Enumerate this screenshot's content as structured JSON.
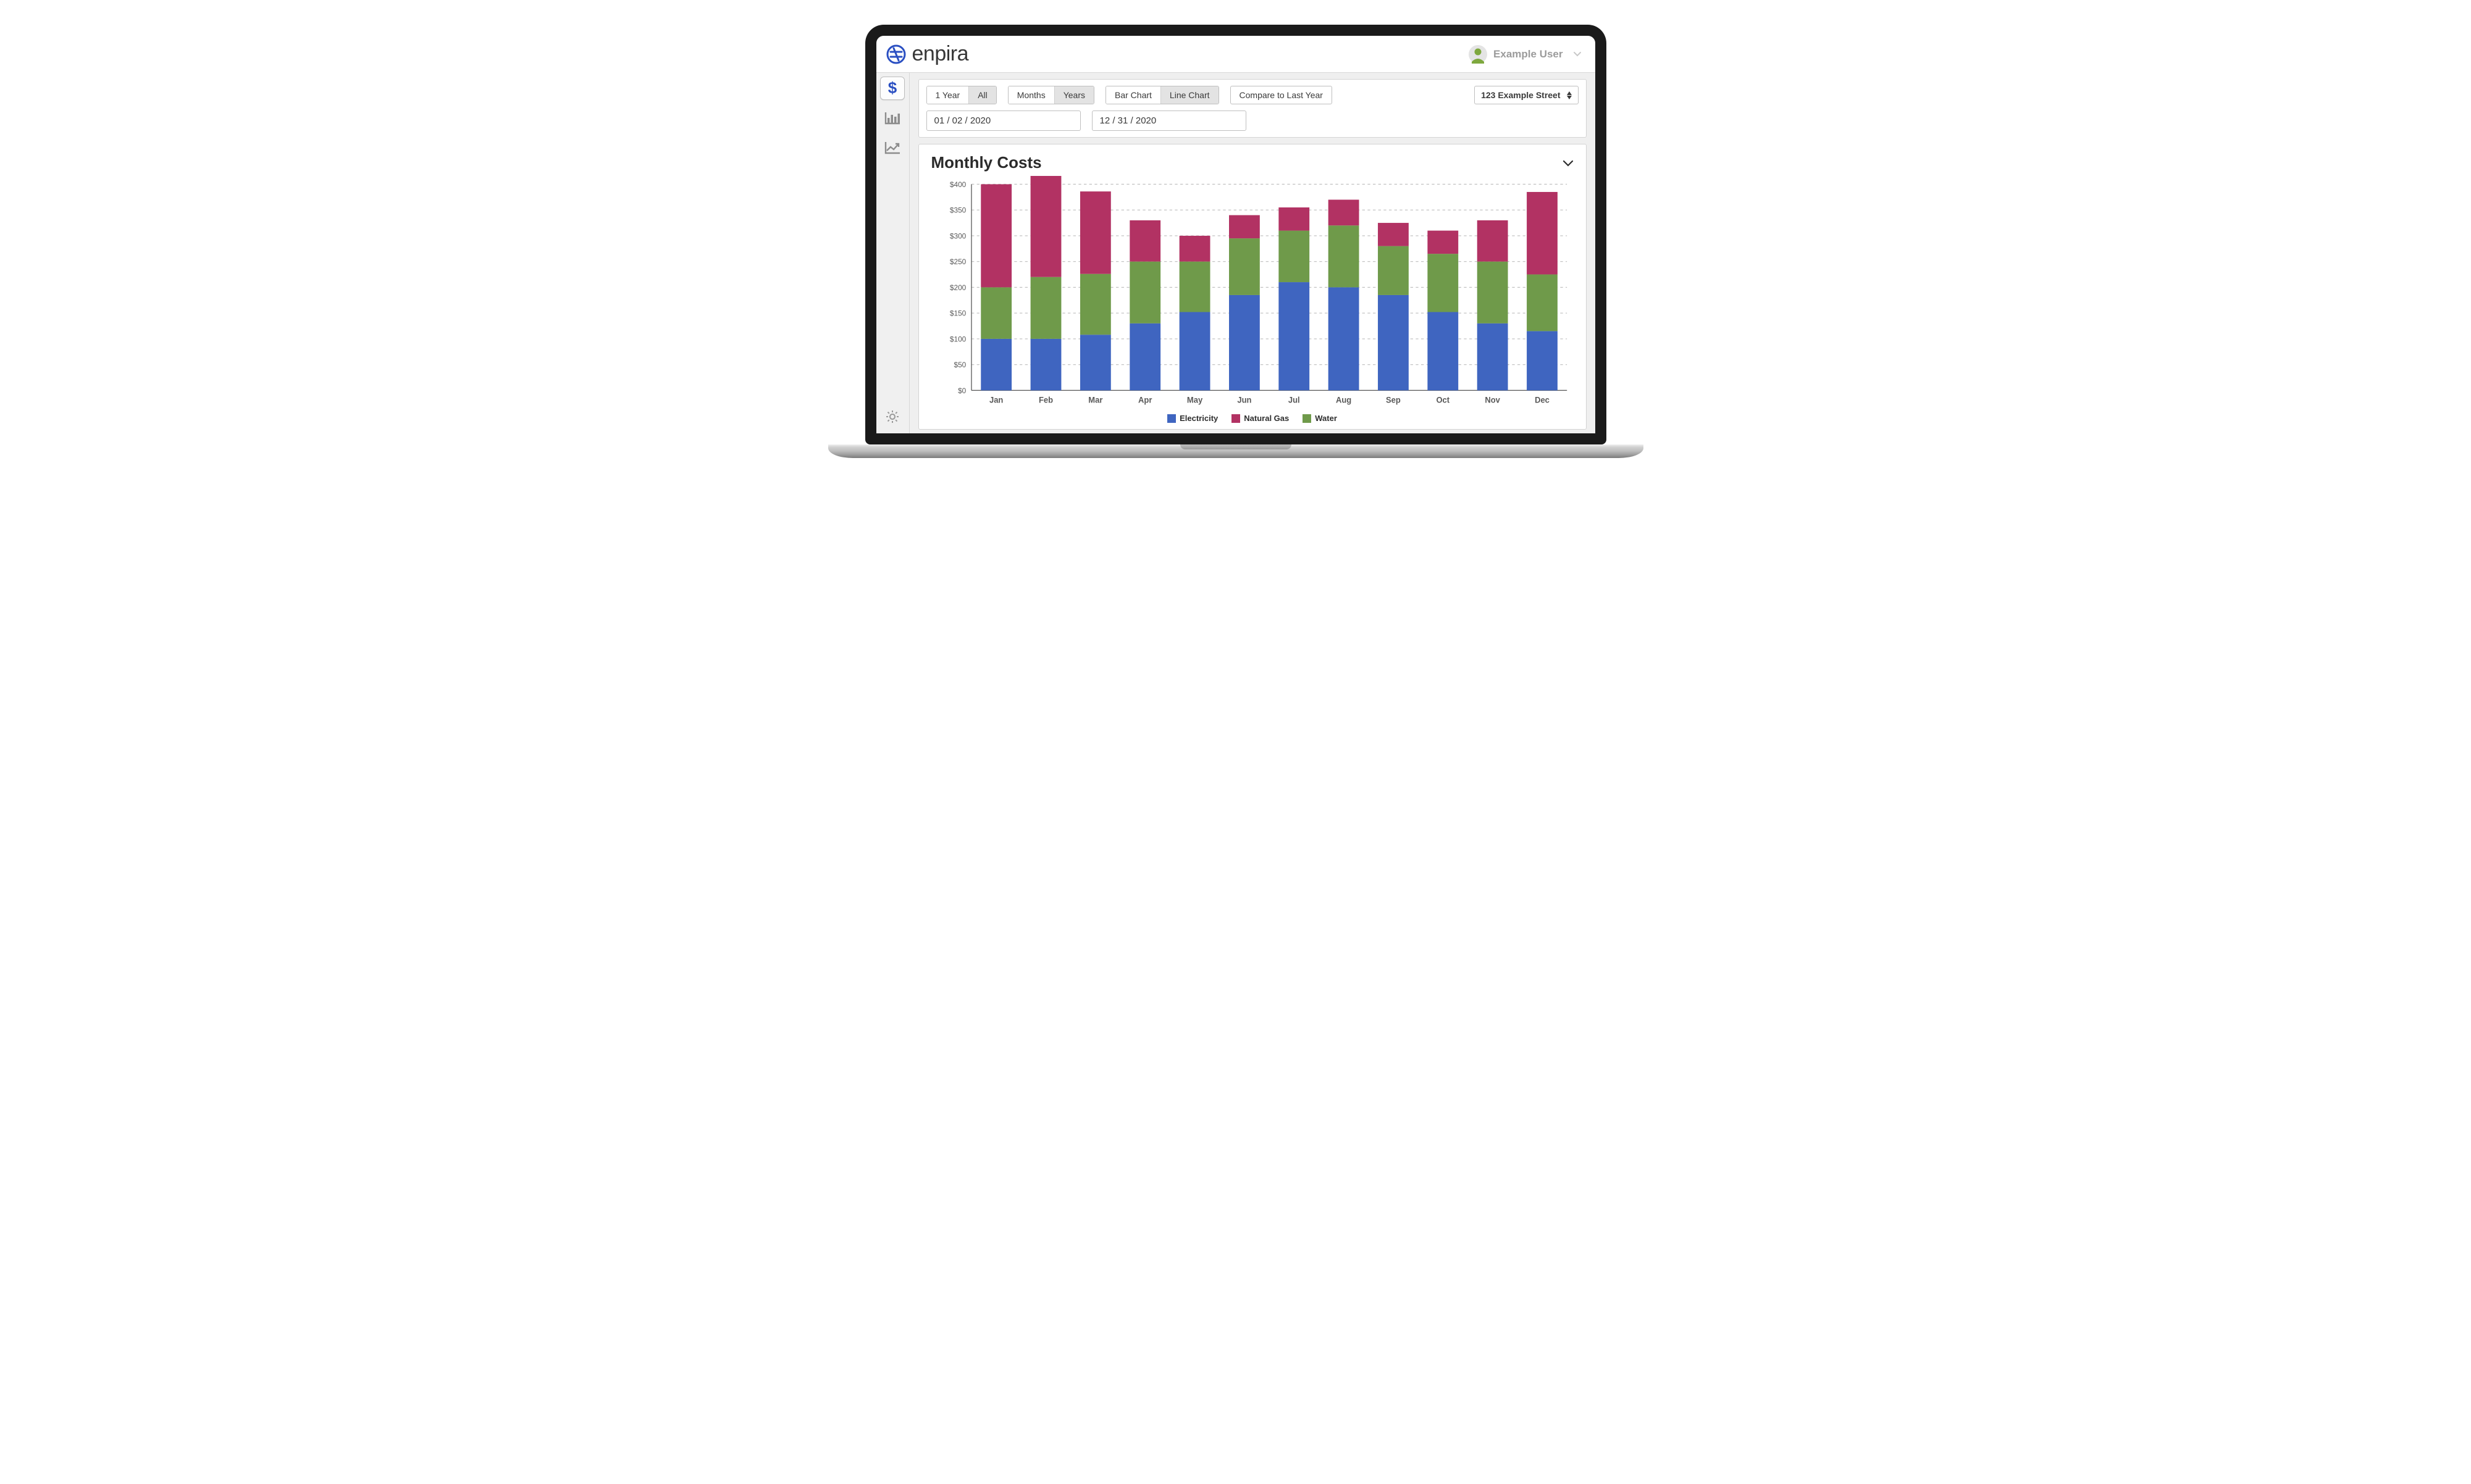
{
  "brand": {
    "name": "enpira",
    "logo_color": "#2a4fc2"
  },
  "header": {
    "user_name": "Example User",
    "avatar_color": "#7ea83e",
    "avatar_bg": "#e4e4e4"
  },
  "sidebar": {
    "icons": [
      {
        "name": "dollar-icon",
        "active": true,
        "stroke": "#2a4fc2"
      },
      {
        "name": "bar-chart-icon",
        "active": false,
        "stroke": "#8c8c8c"
      },
      {
        "name": "trend-icon",
        "active": false,
        "stroke": "#8c8c8c"
      }
    ],
    "settings_stroke": "#9a9a9a"
  },
  "filters": {
    "range_group": [
      {
        "label": "1 Year",
        "selected": true
      },
      {
        "label": "All",
        "selected": false,
        "shaded": true
      }
    ],
    "gran_group": [
      {
        "label": "Months",
        "selected": true
      },
      {
        "label": "Years",
        "selected": false,
        "shaded": true
      }
    ],
    "type_group": [
      {
        "label": "Bar Chart",
        "selected": true
      },
      {
        "label": "Line Chart",
        "selected": false,
        "shaded": true
      }
    ],
    "compare_label": "Compare to Last Year",
    "address": "123 Example Street",
    "date_from": "01 / 02 / 2020",
    "date_to": "12 / 31 / 2020"
  },
  "chart": {
    "title": "Monthly Costs",
    "type": "stacked-bar",
    "background_color": "#ffffff",
    "grid_color": "#bdbdbd",
    "axis_color": "#595959",
    "axis_fontsize": 11,
    "title_fontsize": 26,
    "ylim": [
      0,
      400
    ],
    "ytick_step": 50,
    "ytick_prefix": "$",
    "ytick_labels": [
      "$0",
      "$50",
      "$100",
      "$150",
      "$200",
      "$250",
      "$300",
      "$350",
      "$400"
    ],
    "categories": [
      "Jan",
      "Feb",
      "Mar",
      "Apr",
      "May",
      "Jun",
      "Jul",
      "Aug",
      "Sep",
      "Oct",
      "Nov",
      "Dec"
    ],
    "series": [
      {
        "name": "Electricity",
        "color": "#3f65c0",
        "values": [
          100,
          100,
          108,
          130,
          152,
          185,
          210,
          200,
          185,
          152,
          130,
          115
        ]
      },
      {
        "name": "Natural Gas",
        "color": "#b23263",
        "values": [
          200,
          200,
          160,
          80,
          50,
          45,
          45,
          50,
          45,
          45,
          80,
          160
        ]
      },
      {
        "name": "Water",
        "color": "#6f9a4a",
        "values": [
          100,
          120,
          118,
          120,
          98,
          110,
          100,
          120,
          95,
          113,
          120,
          110
        ]
      }
    ],
    "bar_width_ratio": 0.62,
    "legend_position": "bottom-center"
  }
}
